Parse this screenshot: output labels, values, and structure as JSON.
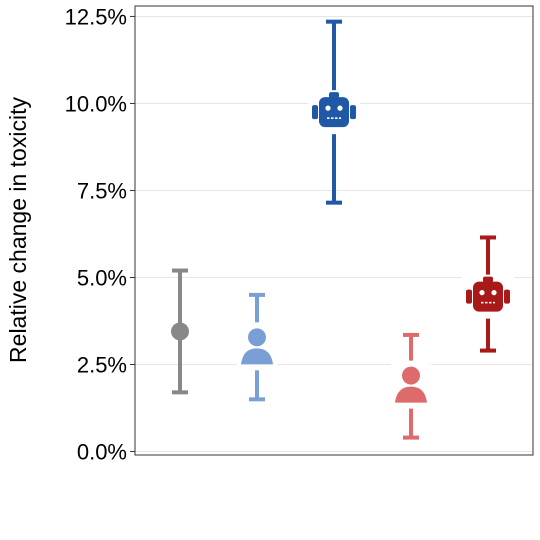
{
  "chart_data": {
    "type": "scatter",
    "title": "",
    "xlabel": "",
    "ylabel": "Relative change in toxicity",
    "ylim": [
      -0.1,
      12.8
    ],
    "yticks": [
      0,
      2.5,
      5.0,
      7.5,
      10.0,
      12.5
    ],
    "ytick_labels": [
      "0.0%",
      "2.5%",
      "5.0%",
      "7.5%",
      "10.0%",
      "12.5%"
    ],
    "grid": "horizontal",
    "legend": "none",
    "points": [
      {
        "marker": "circle",
        "color": "#888888",
        "y": 3.45,
        "low": 1.7,
        "high": 5.2
      },
      {
        "marker": "person-icon",
        "color": "#7a9fd4",
        "y": 2.85,
        "low": 1.5,
        "high": 4.5
      },
      {
        "marker": "robot-icon",
        "color": "#2058a8",
        "y": 9.75,
        "low": 7.15,
        "high": 12.35
      },
      {
        "marker": "person-icon",
        "color": "#dd6b6b",
        "y": 1.75,
        "low": 0.4,
        "high": 3.35
      },
      {
        "marker": "robot-icon",
        "color": "#a81a1a",
        "y": 4.45,
        "low": 2.9,
        "high": 6.15
      }
    ]
  }
}
